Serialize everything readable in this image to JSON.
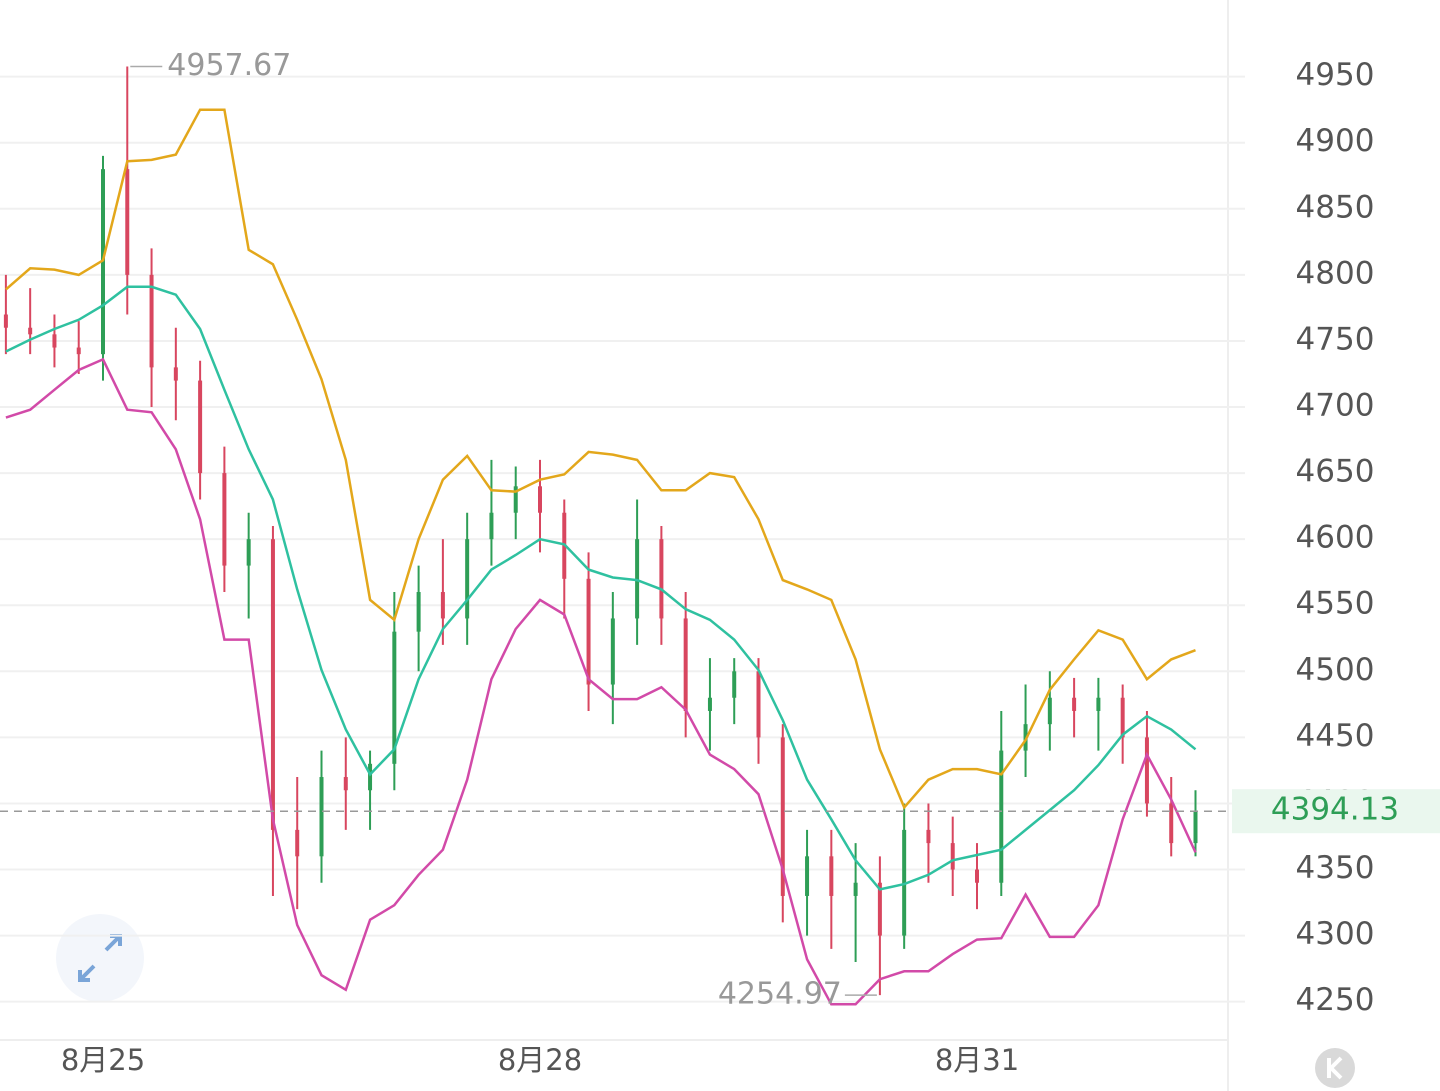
{
  "chart_data": {
    "type": "candlestick",
    "categories": [
      null,
      null,
      null,
      null,
      "8月25",
      null,
      null,
      null,
      null,
      null,
      null,
      null,
      null,
      null,
      null,
      null,
      null,
      null,
      null,
      null,
      null,
      null,
      "8月28",
      null,
      null,
      null,
      null,
      null,
      null,
      null,
      null,
      null,
      null,
      null,
      null,
      null,
      null,
      null,
      null,
      null,
      "8月31",
      null,
      null,
      null,
      null,
      null,
      null,
      null,
      null,
      null
    ],
    "open": [
      4770,
      4760,
      4755,
      4745,
      4740,
      4880,
      4800,
      4730,
      4720,
      4650,
      4580,
      4600,
      4380,
      4360,
      4420,
      4410,
      4430,
      4530,
      4560,
      4540,
      4600,
      4620,
      4640,
      4620,
      4570,
      4490,
      4540,
      4600,
      4540,
      4470,
      4480,
      4500,
      4450,
      4330,
      4360,
      4330,
      4340,
      4300,
      4380,
      4370,
      4350,
      4340,
      4440,
      4460,
      4480,
      4470,
      4480,
      4450,
      4400,
      4370
    ],
    "high": [
      4800,
      4790,
      4770,
      4765,
      4890,
      4957.67,
      4820,
      4760,
      4735,
      4670,
      4620,
      4610,
      4420,
      4440,
      4450,
      4440,
      4560,
      4580,
      4600,
      4620,
      4660,
      4655,
      4660,
      4630,
      4590,
      4560,
      4630,
      4610,
      4560,
      4510,
      4510,
      4510,
      4460,
      4380,
      4380,
      4370,
      4360,
      4400,
      4400,
      4390,
      4370,
      4470,
      4490,
      4500,
      4495,
      4495,
      4490,
      4470,
      4420,
      4410
    ],
    "low": [
      4740,
      4740,
      4730,
      4725,
      4720,
      4770,
      4700,
      4690,
      4630,
      4560,
      4540,
      4330,
      4320,
      4340,
      4380,
      4380,
      4410,
      4500,
      4520,
      4520,
      4580,
      4600,
      4590,
      4540,
      4470,
      4460,
      4520,
      4520,
      4450,
      4440,
      4460,
      4430,
      4310,
      4300,
      4290,
      4280,
      4254.97,
      4290,
      4340,
      4330,
      4320,
      4330,
      4420,
      4440,
      4450,
      4440,
      4430,
      4390,
      4360,
      4360
    ],
    "close": [
      4760,
      4755,
      4745,
      4740,
      4880,
      4800,
      4730,
      4720,
      4650,
      4580,
      4600,
      4380,
      4360,
      4420,
      4410,
      4430,
      4530,
      4560,
      4540,
      4600,
      4620,
      4640,
      4620,
      4570,
      4490,
      4540,
      4600,
      4540,
      4470,
      4480,
      4500,
      4450,
      4330,
      4360,
      4330,
      4340,
      4300,
      4380,
      4370,
      4350,
      4340,
      4440,
      4460,
      4480,
      4470,
      4480,
      4450,
      4400,
      4370,
      4394.13
    ],
    "up_color": "#2e9e56",
    "down_color": "#d8465f",
    "bands": [
      {
        "color": "#e3a71b",
        "values": [
          4789,
          4805,
          4804,
          4800,
          4811,
          4886,
          4887,
          4891,
          4925,
          4925,
          4819,
          4808,
          4766,
          4721,
          4660,
          4554,
          4539,
          4600,
          4645,
          4663,
          4637,
          4636,
          4645,
          4649,
          4666,
          4664,
          4660,
          4637,
          4637,
          4650,
          4647,
          4615,
          4569,
          4562,
          4554,
          4509,
          4441,
          4397,
          4418,
          4426,
          4426,
          4422,
          4448,
          4486,
          4509,
          4531,
          4524,
          4494,
          4509,
          4516
        ]
      },
      {
        "color": "#2fc1a0",
        "values": [
          4742,
          4751,
          4759,
          4766,
          4777,
          4791,
          4791,
          4785,
          4759,
          4713,
          4668,
          4630,
          4562,
          4501,
          4456,
          4422,
          4441,
          4494,
          4532,
          4554,
          4577,
          4588,
          4600,
          4596,
          4577,
          4571,
          4569,
          4562,
          4547,
          4539,
          4524,
          4501,
          4463,
          4418,
          4388,
          4357,
          4335,
          4339,
          4346,
          4357,
          4361,
          4365,
          4380,
          4395,
          4410,
          4429,
          4452,
          4466,
          4456,
          4441
        ]
      },
      {
        "color": "#d24aa8",
        "values": [
          4692,
          4698,
          4713,
          4728,
          4736,
          4698,
          4696,
          4668,
          4615,
          4524,
          4524,
          4388,
          4308,
          4270,
          4259,
          4312,
          4323,
          4346,
          4365,
          4418,
          4494,
          4532,
          4554,
          4543,
          4494,
          4479,
          4479,
          4488,
          4471,
          4437,
          4426,
          4407,
          4350,
          4282,
          4248,
          4248,
          4267,
          4273,
          4273,
          4286,
          4297,
          4298,
          4331,
          4299,
          4299,
          4323,
          4388,
          4437,
          4403,
          4363
        ]
      }
    ],
    "ylim": [
      4221,
      5008
    ],
    "yticks": [
      4250,
      4300,
      4350,
      4400,
      4450,
      4500,
      4550,
      4600,
      4650,
      4700,
      4750,
      4800,
      4850,
      4900,
      4950
    ],
    "grid": true
  }
}
